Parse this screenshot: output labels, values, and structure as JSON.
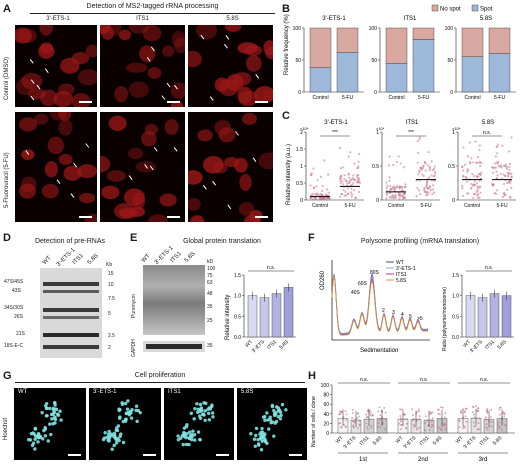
{
  "panels": {
    "A": {
      "letter": "A",
      "title": "Detection of MS2-tagged rRNA processing",
      "columns": [
        "3'-ETS-1",
        "ITS1",
        "5.8S"
      ],
      "rows": [
        "Control (DMSO)",
        "5-Fluorouracil (5-FU)"
      ]
    },
    "B": {
      "letter": "B",
      "ylabel": "Relative frequency (%)",
      "legend": [
        "No spot",
        "Spot"
      ],
      "colors": {
        "no_spot": "#d9a8a1",
        "spot": "#9db8d9"
      }
    },
    "C": {
      "letter": "C",
      "ylabel": "Relative intensity (a.u.)",
      "exponent": "×10⁴"
    },
    "D": {
      "letter": "D",
      "title": "Detection of pre-RNAs",
      "lanes": [
        "WT",
        "3'-ETS-1",
        "ITS1",
        "5.8S"
      ],
      "kb_label": "Kb",
      "band_labels": [
        "47S/45S",
        "43S",
        "34S/30S",
        "26S",
        "21S",
        "18S-E-C"
      ],
      "markers": [
        "15",
        "10",
        "7.5",
        "5",
        "2.5",
        "2"
      ]
    },
    "E": {
      "letter": "E",
      "title": "Global protein translation",
      "lanes": [
        "WT",
        "3'-ETS-1",
        "ITS1",
        "5.8S"
      ],
      "blot_labels": [
        "Puromycin",
        "GAPDH"
      ],
      "kd_label": "kD",
      "markers": [
        "100",
        "75",
        "63",
        "48",
        "35",
        "25",
        "35"
      ],
      "ylabel": "Relative intensity",
      "ns": "n.s."
    },
    "F": {
      "letter": "F",
      "title": "Polysome profiling (mRNA translation)",
      "ylabel": "OD260",
      "xlabel": "Sedimentation",
      "peaks": [
        "40S",
        "60S",
        "80S",
        "2",
        "3",
        "4",
        "5",
        ">5"
      ],
      "legend": [
        "WT",
        "3'-ETS-1",
        "ITS1",
        "5.8S"
      ],
      "bar_ylabel": "Ratio (polysome/monosome)",
      "ns": "n.s."
    },
    "G": {
      "letter": "G",
      "title": "Cell proliferation",
      "side_label": "Hoechst",
      "columns": [
        "WT",
        "3'-ETS-1",
        "ITS1",
        "5.8S"
      ]
    },
    "H": {
      "letter": "H",
      "ylabel": "Number of cells / clone",
      "groups": [
        "1st",
        "2nd",
        "3rd"
      ],
      "ns": "n.s."
    }
  },
  "chart_data": [
    {
      "panel": "B",
      "type": "bar",
      "stacked": true,
      "facets": [
        "3'-ETS-1",
        "ITS1",
        "5.8S"
      ],
      "categories": [
        "Control",
        "5-FU"
      ],
      "ylim": [
        0,
        100
      ],
      "yticks": [
        0,
        50,
        100
      ],
      "series": [
        {
          "name": "Spot",
          "values": [
            [
              38,
              62
            ],
            [
              45,
              82
            ],
            [
              55,
              60
            ]
          ]
        },
        {
          "name": "No spot",
          "values": [
            [
              62,
              38
            ],
            [
              55,
              18
            ],
            [
              45,
              40
            ]
          ]
        }
      ]
    },
    {
      "panel": "C",
      "type": "scatter",
      "facets": [
        "3'-ETS-1",
        "ITS1",
        "5.8S"
      ],
      "categories": [
        "Control",
        "5-FU"
      ],
      "ylims": [
        [
          0,
          2
        ],
        [
          0,
          1
        ],
        [
          0,
          1
        ]
      ],
      "yticks": [
        [
          0,
          0.5,
          1,
          1.5,
          2
        ],
        [
          0,
          0.5,
          1
        ],
        [
          0,
          0.5,
          1
        ]
      ],
      "medians": [
        [
          0.1,
          0.4
        ],
        [
          0.12,
          0.3
        ],
        [
          0.3,
          0.3
        ]
      ],
      "significance": [
        "***",
        "***",
        "n.s."
      ],
      "exponents": [
        "×10⁴",
        "×10⁴",
        "×10⁴"
      ]
    },
    {
      "panel": "E",
      "type": "bar",
      "categories": [
        "WT",
        "3'-ETS",
        "ITS1",
        "5.8S"
      ],
      "values": [
        1.0,
        0.95,
        1.05,
        1.2
      ],
      "ylim": [
        0,
        1.5
      ],
      "yticks": [
        0,
        0.5,
        1.0,
        1.5
      ]
    },
    {
      "panel": "F",
      "type": "bar",
      "categories": [
        "WT",
        "3'-ETS",
        "ITS1",
        "5.8S"
      ],
      "values": [
        1.0,
        0.95,
        1.05,
        1.0
      ],
      "ylim": [
        0,
        1.5
      ],
      "yticks": [
        0,
        0.5,
        1.0,
        1.5
      ]
    },
    {
      "panel": "H",
      "type": "scatter",
      "groups": [
        "1st",
        "2nd",
        "3rd"
      ],
      "categories": [
        "WT",
        "3'-ETS",
        "ITS1",
        "5.8S"
      ],
      "means": [
        [
          30,
          27,
          29,
          30
        ],
        [
          29,
          28,
          27,
          30
        ],
        [
          30,
          31,
          28,
          30
        ]
      ],
      "ylim": [
        0,
        100
      ],
      "yticks": [
        0,
        20,
        40,
        60,
        80,
        100
      ]
    }
  ]
}
